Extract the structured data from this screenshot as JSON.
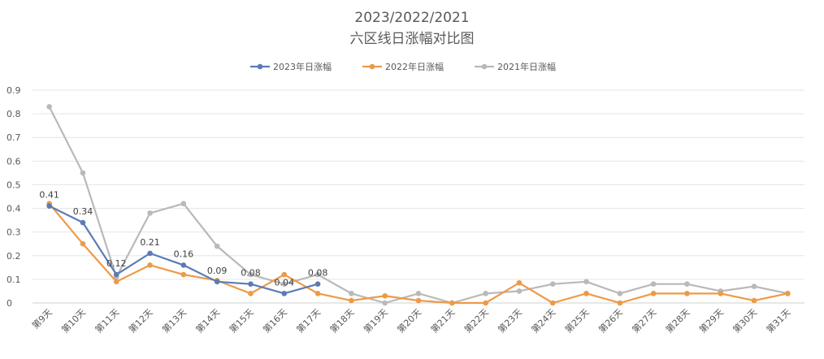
{
  "chart_data": {
    "type": "line",
    "title": "2023/2022/2021",
    "subtitle": "六区线日涨幅对比图",
    "xlabel": "",
    "ylabel": "",
    "ylim": [
      0,
      0.9
    ],
    "yticks": [
      0,
      0.1,
      0.2,
      0.3,
      0.4,
      0.5,
      0.6,
      0.7,
      0.8,
      0.9
    ],
    "ytick_labels": [
      "0",
      "0.1",
      "0.2",
      "0.3",
      "0.4",
      "0.5",
      "0.6",
      "0.7",
      "0.8",
      "0.9"
    ],
    "grid": true,
    "legend_position": "top",
    "categories": [
      "第9天",
      "第10天",
      "第11天",
      "第12天",
      "第13天",
      "第14天",
      "第15天",
      "第16天",
      "第17天",
      "第18天",
      "第19天",
      "第20天",
      "第21天",
      "第22天",
      "第23天",
      "第24天",
      "第25天",
      "第26天",
      "第27天",
      "第28天",
      "第29天",
      "第30天",
      "第31天"
    ],
    "series": [
      {
        "name": "2023年日涨幅",
        "color": "#5b7bb5",
        "values": [
          0.41,
          0.34,
          0.12,
          0.21,
          0.16,
          0.09,
          0.08,
          0.04,
          0.08,
          null,
          null,
          null,
          null,
          null,
          null,
          null,
          null,
          null,
          null,
          null,
          null,
          null,
          null
        ],
        "data_labels": [
          "0.41",
          "0.34",
          "0.12",
          "0.21",
          "0.16",
          "0.09",
          "0.08",
          "0.04",
          "0.08"
        ]
      },
      {
        "name": "2022年日涨幅",
        "color": "#ed9a47",
        "values": [
          0.42,
          0.25,
          0.09,
          0.16,
          0.12,
          0.095,
          0.04,
          0.12,
          0.04,
          0.01,
          0.03,
          0.01,
          0.0,
          0.0,
          0.085,
          0.0,
          0.04,
          0.0,
          0.04,
          0.04,
          0.04,
          0.01,
          0.04
        ]
      },
      {
        "name": "2021年日涨幅",
        "color": "#b9b9b9",
        "values": [
          0.83,
          0.55,
          0.11,
          0.38,
          0.42,
          0.24,
          0.12,
          0.08,
          0.12,
          0.04,
          0.0,
          0.04,
          0.0,
          0.04,
          0.05,
          0.08,
          0.09,
          0.04,
          0.08,
          0.08,
          0.05,
          0.07,
          0.04
        ]
      }
    ]
  }
}
